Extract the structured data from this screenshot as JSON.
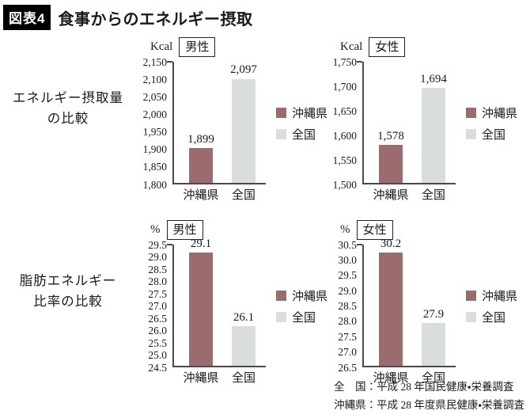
{
  "header": {
    "badge": "図表4",
    "title": "食事からのエネルギー摂取"
  },
  "rows": [
    {
      "label_line1": "エネルギー摂取量",
      "label_line2": "の比較"
    },
    {
      "label_line1": "脂肪エネルギー",
      "label_line2": "比率の比較"
    }
  ],
  "legend": {
    "items": [
      {
        "label": "沖縄県",
        "color": "#9c6b6e"
      },
      {
        "label": "全国",
        "color": "#d9dddb"
      }
    ],
    "position": "right"
  },
  "colors": {
    "okinawa": "#9c6b6e",
    "national": "#d9dddb",
    "axis": "#4a4a4a"
  },
  "footer": {
    "line1": "全　国：平成 28 年国民健康・栄養調査",
    "line2": "沖縄県：平成 28 年度県民健康・栄養調査"
  },
  "chart_data": [
    {
      "type": "bar",
      "unit": "Kcal",
      "group": "男性",
      "categories": [
        "沖縄県",
        "全国"
      ],
      "values": [
        1899,
        2097
      ],
      "value_labels": [
        "1,899",
        "2,097"
      ],
      "ylim": [
        1800,
        2150
      ],
      "yticks": [
        1800,
        1850,
        1900,
        1950,
        2000,
        2050,
        2100,
        2150
      ],
      "ytick_labels": [
        "1,800",
        "1,850",
        "1,900",
        "1,950",
        "2,000",
        "2,050",
        "2,100",
        "2,150"
      ],
      "series_colors": [
        "#9c6b6e",
        "#d9dddb"
      ],
      "legend": [
        "沖縄県",
        "全国"
      ],
      "grid": false,
      "legend_position": "right"
    },
    {
      "type": "bar",
      "unit": "Kcal",
      "group": "女性",
      "categories": [
        "沖縄県",
        "全国"
      ],
      "values": [
        1578,
        1694
      ],
      "value_labels": [
        "1,578",
        "1,694"
      ],
      "ylim": [
        1500,
        1750
      ],
      "yticks": [
        1500,
        1550,
        1600,
        1650,
        1700,
        1750
      ],
      "ytick_labels": [
        "1,500",
        "1,550",
        "1,600",
        "1,650",
        "1,700",
        "1,750"
      ],
      "series_colors": [
        "#9c6b6e",
        "#d9dddb"
      ],
      "legend": [
        "沖縄県",
        "全国"
      ],
      "grid": false,
      "legend_position": "right"
    },
    {
      "type": "bar",
      "unit": "%",
      "group": "男性",
      "categories": [
        "沖縄県",
        "全国"
      ],
      "values": [
        29.1,
        26.1
      ],
      "value_labels": [
        "29.1",
        "26.1"
      ],
      "ylim": [
        24.5,
        29.5
      ],
      "yticks": [
        24.5,
        25.0,
        25.5,
        26.0,
        26.5,
        27.0,
        27.5,
        28.0,
        28.5,
        29.0,
        29.5
      ],
      "ytick_labels": [
        "24.5",
        "25.0",
        "25.5",
        "26.0",
        "26.5",
        "27.0",
        "27.5",
        "28.0",
        "28.5",
        "29.0",
        "29.5"
      ],
      "series_colors": [
        "#9c6b6e",
        "#d9dddb"
      ],
      "legend": [
        "沖縄県",
        "全国"
      ],
      "grid": false,
      "legend_position": "right"
    },
    {
      "type": "bar",
      "unit": "%",
      "group": "女性",
      "categories": [
        "沖縄県",
        "全国"
      ],
      "values": [
        30.2,
        27.9
      ],
      "value_labels": [
        "30.2",
        "27.9"
      ],
      "ylim": [
        26.5,
        30.5
      ],
      "yticks": [
        26.5,
        27.0,
        27.5,
        28.0,
        28.5,
        29.0,
        29.5,
        30.0,
        30.5
      ],
      "ytick_labels": [
        "26.5",
        "27.0",
        "27.5",
        "28.0",
        "28.5",
        "29.0",
        "29.5",
        "30.0",
        "30.5"
      ],
      "series_colors": [
        "#9c6b6e",
        "#d9dddb"
      ],
      "legend": [
        "沖縄県",
        "全国"
      ],
      "grid": false,
      "legend_position": "right"
    }
  ]
}
